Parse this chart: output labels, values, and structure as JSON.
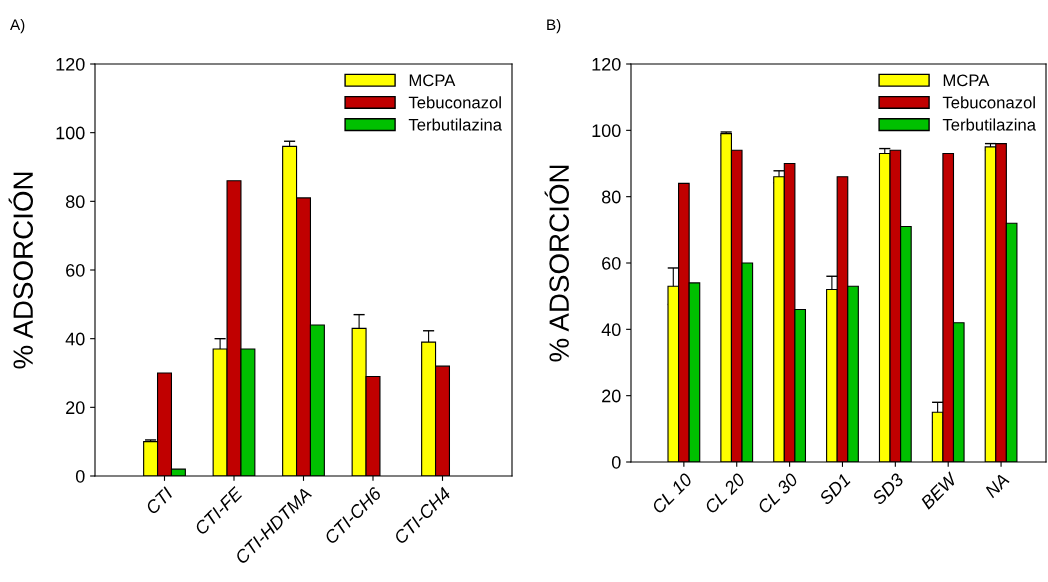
{
  "chart_data": [
    {
      "type": "bar",
      "title": "A)",
      "ylabel": "% ADSORCIÓN",
      "categories": [
        "CTI",
        "CTI-FE",
        "CTI-HDTMA",
        "CTI-CH6",
        "CTI-CH4"
      ],
      "ylim": [
        0,
        120
      ],
      "yticks": [
        0,
        20,
        40,
        60,
        80,
        100,
        120
      ],
      "legend": "top right",
      "grid": false,
      "series": [
        {
          "name": "MCPA",
          "color": "#ffff00",
          "values": [
            10,
            37,
            96,
            43,
            39
          ],
          "errors": [
            0.5,
            3,
            1.5,
            4,
            3.3
          ]
        },
        {
          "name": "Tebuconazol",
          "color": "#c00000",
          "values": [
            30,
            86,
            81,
            29,
            32
          ]
        },
        {
          "name": "Terbutilazina",
          "color": "#00c000",
          "values": [
            2,
            37,
            44,
            null,
            null
          ]
        }
      ]
    },
    {
      "type": "bar",
      "title": "B)",
      "ylabel": "% ADSORCIÓN",
      "categories": [
        "CL 10",
        "CL 20",
        "CL 30",
        "SD1",
        "SD3",
        "BEW",
        "NA"
      ],
      "ylim": [
        0,
        120
      ],
      "yticks": [
        0,
        20,
        40,
        60,
        80,
        100,
        120
      ],
      "legend": "top right",
      "grid": false,
      "series": [
        {
          "name": "MCPA",
          "color": "#ffff00",
          "values": [
            53,
            99,
            86,
            52,
            93,
            15,
            95
          ],
          "errors": [
            5.5,
            0.5,
            1.8,
            4,
            1.5,
            3,
            1
          ]
        },
        {
          "name": "Tebuconazol",
          "color": "#c00000",
          "values": [
            84,
            94,
            90,
            86,
            94,
            93,
            96
          ]
        },
        {
          "name": "Terbutilazina",
          "color": "#00c000",
          "values": [
            54,
            60,
            46,
            53,
            71,
            42,
            72
          ]
        }
      ]
    }
  ]
}
